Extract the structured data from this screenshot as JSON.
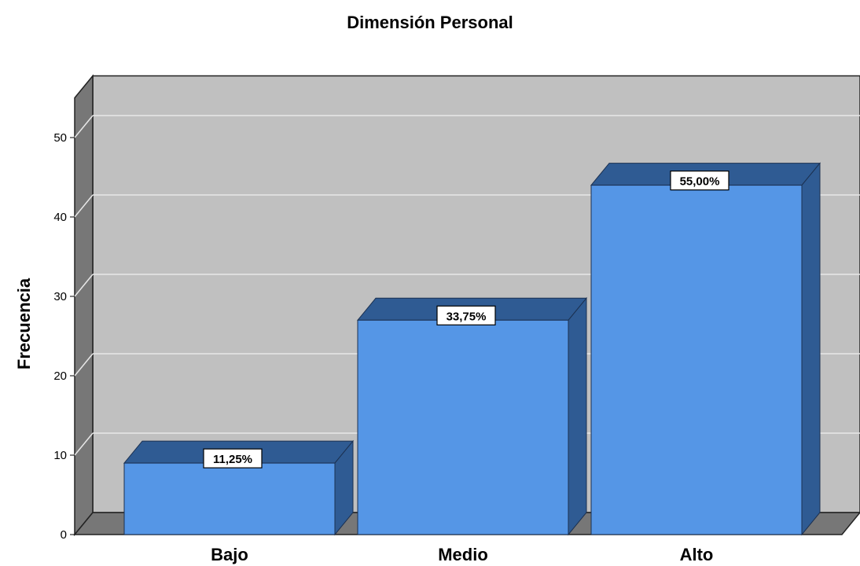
{
  "chart_data": {
    "type": "bar",
    "title": "Dimensión Personal",
    "xlabel": "",
    "ylabel": "Frecuencia",
    "categories": [
      "Bajo",
      "Medio",
      "Alto"
    ],
    "values": [
      9,
      27,
      44
    ],
    "data_labels": [
      "11,25%",
      "33,75%",
      "55,00%"
    ],
    "ylim": [
      0,
      55
    ],
    "yticks": [
      0,
      10,
      20,
      30,
      40,
      50
    ],
    "grid": true,
    "style": "3d",
    "colors": {
      "bar_front": "#5596e6",
      "bar_top": "#2f5b93",
      "bar_side": "#2f5b93",
      "plot_back": "#c0c0c0",
      "plot_wall": "#777777",
      "gridline": "#e8e8e8"
    }
  }
}
